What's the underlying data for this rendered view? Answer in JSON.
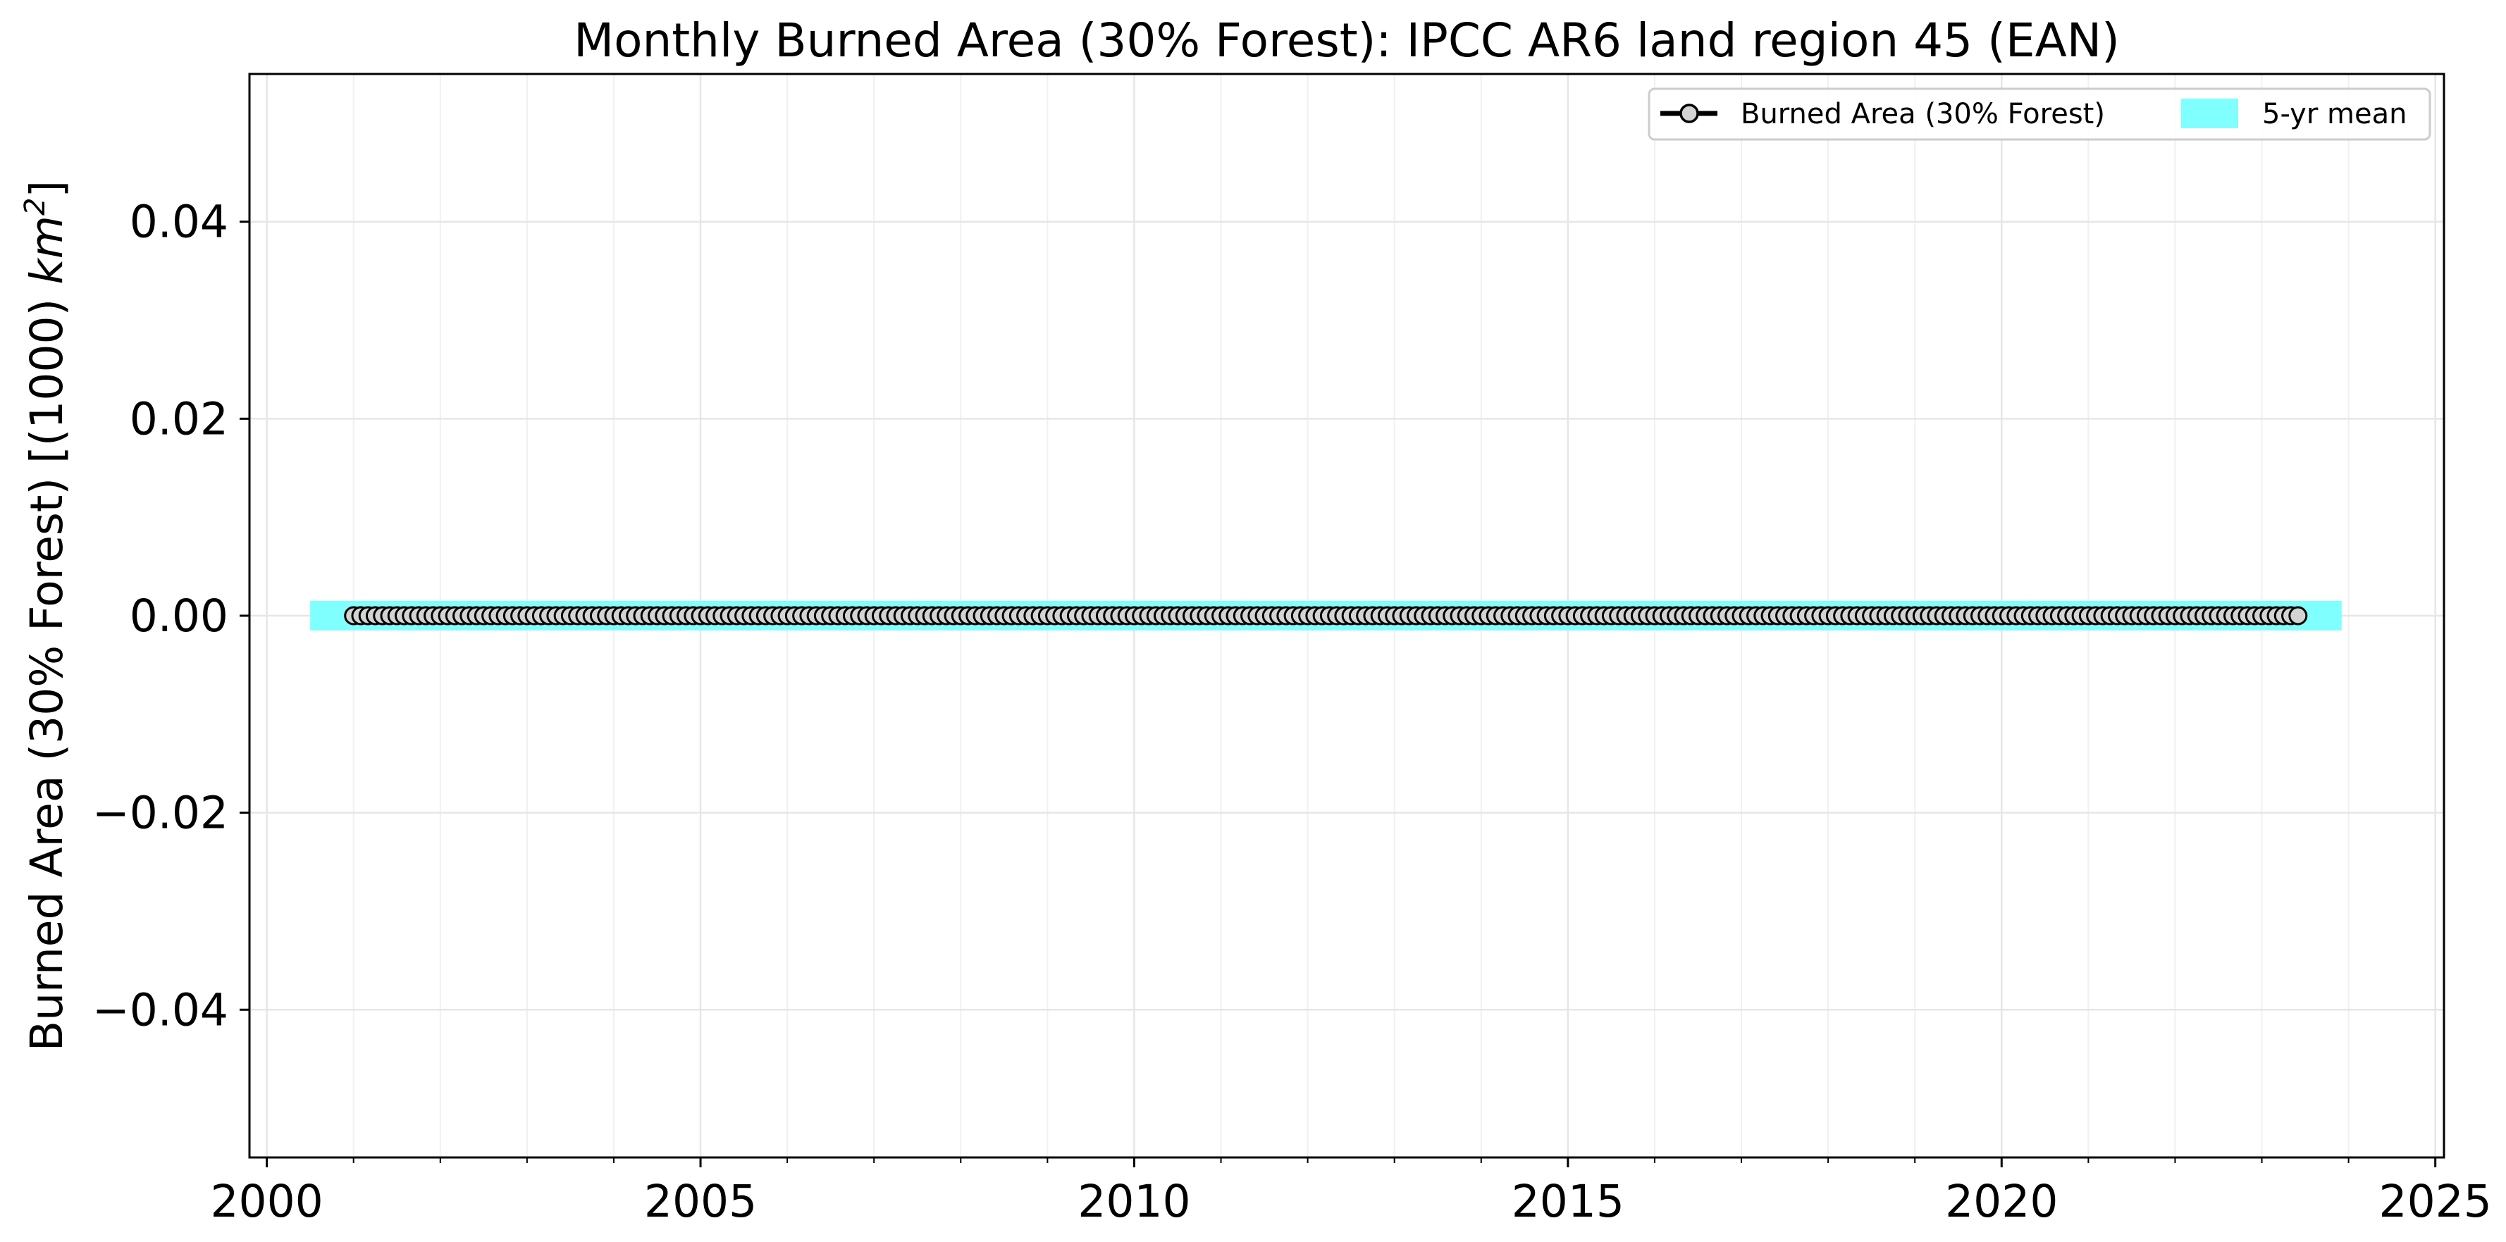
{
  "chart_data": {
    "type": "line",
    "title": "Monthly Burned Area (30% Forest): IPCC AR6 land region 45 (EAN)",
    "xlabel": "",
    "ylabel": {
      "main": "Burned Area (30% Forest) [(1000) ",
      "unit_base": "km",
      "unit_exp": "2",
      "close": "]"
    },
    "xlim": [
      1999.8,
      2025.1
    ],
    "ylim": [
      -0.055,
      0.055
    ],
    "x_ticks": [
      2000,
      2005,
      2010,
      2015,
      2020,
      2025
    ],
    "x_tick_labels": [
      "2000",
      "2005",
      "2010",
      "2015",
      "2020",
      "2025"
    ],
    "x_minor_tick_step": 1,
    "y_ticks": [
      -0.04,
      -0.02,
      0.0,
      0.02,
      0.04
    ],
    "y_tick_labels": [
      "−0.04",
      "−0.02",
      "0.00",
      "0.02",
      "0.04"
    ],
    "grid": true,
    "legend_position": "top-right",
    "series": [
      {
        "name": "Burned Area (30% Forest)",
        "kind": "line-marker",
        "line_color": "#000000",
        "marker_face": "#d3d3d3",
        "marker_edge": "#000000",
        "x_start": "2001-01",
        "x_end": "2023-06",
        "frequency": "monthly",
        "value": 0.0
      },
      {
        "name": "5-yr mean",
        "kind": "band",
        "color": "#80ffff",
        "x": [
          2000.5,
          2023.92
        ],
        "y": [
          0.0,
          0.0
        ]
      }
    ]
  }
}
